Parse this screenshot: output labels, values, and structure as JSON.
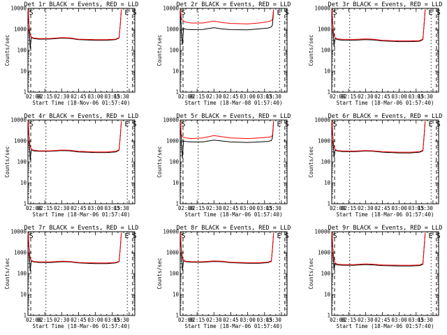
{
  "colors": {
    "events": "#000000",
    "lld": "#ff0000",
    "background": "#ffffff",
    "axes": "#000000"
  },
  "chart_data": [
    {
      "type": "line",
      "title": "Det 1r BLACK = Events, RED = LLD",
      "xlabel": "Start Time (18-Nov-06 01:57:40)",
      "ylabel": "Counts/sec",
      "yscale": "log",
      "ylim": [
        1,
        10000
      ],
      "xticks": [
        "02:00",
        "02:15",
        "02:30",
        "02:45",
        "03:00",
        "03:15",
        "03:30"
      ],
      "yticks": [
        "1",
        "10",
        "100",
        "1000",
        "10000"
      ],
      "markers": [
        "S",
        "E",
        "S"
      ],
      "series": [
        {
          "name": "Events",
          "x": [
            "02:00",
            "02:01",
            "02:02",
            "02:03",
            "02:05",
            "02:10",
            "02:20",
            "02:30",
            "02:37",
            "02:45",
            "03:00",
            "03:10",
            "03:18",
            "03:21",
            "03:22",
            "03:23"
          ],
          "y": [
            8000,
            1500,
            120,
            400,
            360,
            340,
            345,
            380,
            370,
            320,
            300,
            300,
            320,
            380,
            1500,
            8000
          ]
        },
        {
          "name": "LLD",
          "x": [
            "02:00",
            "02:01",
            "02:02",
            "02:03",
            "02:05",
            "02:10",
            "02:20",
            "02:30",
            "02:37",
            "02:45",
            "03:00",
            "03:10",
            "03:18",
            "03:21",
            "03:22",
            "03:23"
          ],
          "y": [
            9000,
            1600,
            600,
            430,
            380,
            360,
            365,
            400,
            390,
            340,
            320,
            320,
            340,
            400,
            1600,
            9000
          ]
        }
      ]
    },
    {
      "type": "line",
      "title": "Det 2r BLACK = Events, RED = LLD",
      "xlabel": "Start Time (18-Mar-08 01:57:40)",
      "ylabel": "Counts/sec",
      "yscale": "log",
      "ylim": [
        1,
        10000
      ],
      "xticks": [
        "02:00",
        "02:15",
        "02:30",
        "02:45",
        "03:00",
        "03:15",
        "03:30"
      ],
      "yticks": [
        "1",
        "10",
        "100",
        "1000",
        "10000"
      ],
      "markers": [
        "S",
        "E",
        "S"
      ],
      "series": [
        {
          "name": "Events",
          "x": [
            "02:00",
            "02:01",
            "02:02",
            "02:03",
            "02:05",
            "02:10",
            "02:20",
            "02:30",
            "02:37",
            "02:45",
            "03:00",
            "03:10",
            "03:18",
            "03:21",
            "03:22",
            "03:23"
          ],
          "y": [
            8000,
            1200,
            180,
            1100,
            1000,
            960,
            980,
            1200,
            1050,
            960,
            950,
            1050,
            1150,
            1300,
            1600,
            8000
          ]
        },
        {
          "name": "LLD",
          "x": [
            "02:00",
            "02:01",
            "02:02",
            "02:03",
            "02:05",
            "02:10",
            "02:20",
            "02:30",
            "02:37",
            "02:45",
            "03:00",
            "03:10",
            "03:18",
            "03:21",
            "03:22",
            "03:23"
          ],
          "y": [
            9000,
            3500,
            2800,
            2500,
            2200,
            2000,
            2000,
            2500,
            2100,
            1900,
            1800,
            2000,
            2300,
            2600,
            3000,
            9000
          ]
        }
      ]
    },
    {
      "type": "line",
      "title": "Det 3r BLACK = Events, RED = LLD",
      "xlabel": "Start Time (18-Mar-06 01:57:40)",
      "ylabel": "Counts/sec",
      "yscale": "log",
      "ylim": [
        1,
        10000
      ],
      "xticks": [
        "02:00",
        "02:15",
        "02:30",
        "02:45",
        "03:00",
        "03:15",
        "03:30"
      ],
      "yticks": [
        "1",
        "10",
        "100",
        "1000",
        "10000"
      ],
      "markers": [
        "S",
        "E",
        "S"
      ],
      "series": [
        {
          "name": "Events",
          "x": [
            "02:00",
            "02:01",
            "02:02",
            "02:03",
            "02:05",
            "02:10",
            "02:20",
            "02:30",
            "02:37",
            "02:45",
            "03:00",
            "03:10",
            "03:18",
            "03:21",
            "03:22",
            "03:23"
          ],
          "y": [
            8000,
            1500,
            150,
            360,
            320,
            300,
            300,
            320,
            310,
            280,
            260,
            260,
            270,
            320,
            1500,
            8000
          ]
        },
        {
          "name": "LLD",
          "x": [
            "02:00",
            "02:01",
            "02:02",
            "02:03",
            "02:05",
            "02:10",
            "02:20",
            "02:30",
            "02:37",
            "02:45",
            "03:00",
            "03:10",
            "03:18",
            "03:21",
            "03:22",
            "03:23"
          ],
          "y": [
            9000,
            1600,
            500,
            400,
            350,
            330,
            330,
            350,
            340,
            300,
            280,
            280,
            290,
            340,
            1600,
            9000
          ]
        }
      ]
    },
    {
      "type": "line",
      "title": "Det 4r BLACK = Events, RED = LLD",
      "xlabel": "Start Time (18-Mar-06 01:57:40)",
      "ylabel": "Counts/sec",
      "yscale": "log",
      "ylim": [
        1,
        10000
      ],
      "xticks": [
        "02:00",
        "02:15",
        "02:30",
        "02:45",
        "03:00",
        "03:15",
        "03:30"
      ],
      "yticks": [
        "1",
        "10",
        "100",
        "1000",
        "10000"
      ],
      "markers": [
        "S",
        "E",
        "S"
      ],
      "series": [
        {
          "name": "Events",
          "x": [
            "02:00",
            "02:01",
            "02:02",
            "02:03",
            "02:05",
            "02:10",
            "02:20",
            "02:30",
            "02:37",
            "02:45",
            "03:00",
            "03:10",
            "03:18",
            "03:21",
            "03:22",
            "03:23"
          ],
          "y": [
            8000,
            1500,
            120,
            380,
            340,
            320,
            320,
            350,
            340,
            300,
            280,
            280,
            300,
            360,
            1500,
            8000
          ]
        },
        {
          "name": "LLD",
          "x": [
            "02:00",
            "02:01",
            "02:02",
            "02:03",
            "02:05",
            "02:10",
            "02:20",
            "02:30",
            "02:37",
            "02:45",
            "03:00",
            "03:10",
            "03:18",
            "03:21",
            "03:22",
            "03:23"
          ],
          "y": [
            9000,
            1600,
            550,
            410,
            360,
            340,
            340,
            370,
            360,
            320,
            300,
            300,
            320,
            380,
            1600,
            9000
          ]
        }
      ]
    },
    {
      "type": "line",
      "title": "Det 5r BLACK = Events, RED = LLD",
      "xlabel": "Start Time (18-Mar-06 01:57:40)",
      "ylabel": "Counts/sec",
      "yscale": "log",
      "ylim": [
        1,
        10000
      ],
      "xticks": [
        "02:00",
        "02:15",
        "02:30",
        "02:45",
        "03:00",
        "03:15",
        "03:30"
      ],
      "yticks": [
        "1",
        "10",
        "100",
        "1000",
        "10000"
      ],
      "markers": [
        "S",
        "E",
        "S"
      ],
      "series": [
        {
          "name": "Events",
          "x": [
            "02:00",
            "02:01",
            "02:02",
            "02:03",
            "02:05",
            "02:10",
            "02:20",
            "02:30",
            "02:37",
            "02:45",
            "03:00",
            "03:10",
            "03:18",
            "03:21",
            "03:22",
            "03:23"
          ],
          "y": [
            8000,
            1200,
            150,
            1000,
            950,
            900,
            900,
            1100,
            1000,
            900,
            850,
            900,
            950,
            1050,
            1400,
            8000
          ]
        },
        {
          "name": "LLD",
          "x": [
            "02:00",
            "02:01",
            "02:02",
            "02:03",
            "02:05",
            "02:10",
            "02:20",
            "02:30",
            "02:37",
            "02:45",
            "03:00",
            "03:10",
            "03:18",
            "03:21",
            "03:22",
            "03:23"
          ],
          "y": [
            9000,
            2000,
            1600,
            1500,
            1400,
            1300,
            1400,
            1800,
            1600,
            1400,
            1300,
            1400,
            1500,
            1600,
            1900,
            9000
          ]
        }
      ]
    },
    {
      "type": "line",
      "title": "Det 6r BLACK = Events, RED = LLD",
      "xlabel": "Start Time (18-Mar-06 01:57:40)",
      "ylabel": "Counts/sec",
      "yscale": "log",
      "ylim": [
        1,
        10000
      ],
      "xticks": [
        "02:00",
        "02:15",
        "02:30",
        "02:45",
        "03:00",
        "03:15",
        "03:30"
      ],
      "yticks": [
        "1",
        "10",
        "100",
        "1000",
        "10000"
      ],
      "markers": [
        "S",
        "E",
        "S"
      ],
      "series": [
        {
          "name": "Events",
          "x": [
            "02:00",
            "02:01",
            "02:02",
            "02:03",
            "02:05",
            "02:10",
            "02:20",
            "02:30",
            "02:37",
            "02:45",
            "03:00",
            "03:10",
            "03:18",
            "03:21",
            "03:22",
            "03:23"
          ],
          "y": [
            8000,
            1500,
            160,
            370,
            330,
            310,
            310,
            330,
            320,
            290,
            270,
            270,
            290,
            340,
            1500,
            8000
          ]
        },
        {
          "name": "LLD",
          "x": [
            "02:00",
            "02:01",
            "02:02",
            "02:03",
            "02:05",
            "02:10",
            "02:20",
            "02:30",
            "02:37",
            "02:45",
            "03:00",
            "03:10",
            "03:18",
            "03:21",
            "03:22",
            "03:23"
          ],
          "y": [
            9000,
            1600,
            520,
            400,
            350,
            330,
            330,
            350,
            340,
            310,
            290,
            290,
            310,
            360,
            1600,
            9000
          ]
        }
      ]
    },
    {
      "type": "line",
      "title": "Det 7r BLACK = Events, RED = LLD",
      "xlabel": "Start Time (18-Mar-06 01:57:40)",
      "ylabel": "Counts/sec",
      "yscale": "log",
      "ylim": [
        1,
        10000
      ],
      "xticks": [
        "02:00",
        "02:15",
        "02:30",
        "02:45",
        "03:00",
        "03:15",
        "03:30"
      ],
      "yticks": [
        "1",
        "10",
        "100",
        "1000",
        "10000"
      ],
      "markers": [
        "S",
        "E",
        "S"
      ],
      "series": [
        {
          "name": "Events",
          "x": [
            "02:00",
            "02:01",
            "02:02",
            "02:03",
            "02:05",
            "02:10",
            "02:20",
            "02:30",
            "02:37",
            "02:45",
            "03:00",
            "03:10",
            "03:18",
            "03:21",
            "03:22",
            "03:23"
          ],
          "y": [
            8000,
            1500,
            130,
            400,
            360,
            340,
            340,
            370,
            360,
            320,
            300,
            300,
            320,
            370,
            1500,
            8000
          ]
        },
        {
          "name": "LLD",
          "x": [
            "02:00",
            "02:01",
            "02:02",
            "02:03",
            "02:05",
            "02:10",
            "02:20",
            "02:30",
            "02:37",
            "02:45",
            "03:00",
            "03:10",
            "03:18",
            "03:21",
            "03:22",
            "03:23"
          ],
          "y": [
            9000,
            1600,
            560,
            430,
            380,
            360,
            360,
            390,
            380,
            340,
            320,
            320,
            340,
            390,
            1600,
            9000
          ]
        }
      ]
    },
    {
      "type": "line",
      "title": "Det 8r BLACK = Events, RED = LLD",
      "xlabel": "Start Time (18-Mar-06 01:57:40)",
      "ylabel": "Counts/sec",
      "yscale": "log",
      "ylim": [
        1,
        10000
      ],
      "xticks": [
        "02:00",
        "02:15",
        "02:30",
        "02:45",
        "03:00",
        "03:15",
        "03:30"
      ],
      "yticks": [
        "1",
        "10",
        "100",
        "1000",
        "10000"
      ],
      "markers": [
        "S",
        "E",
        "S"
      ],
      "series": [
        {
          "name": "Events",
          "x": [
            "02:00",
            "02:01",
            "02:02",
            "02:03",
            "02:05",
            "02:10",
            "02:20",
            "02:30",
            "02:37",
            "02:45",
            "03:00",
            "03:10",
            "03:18",
            "03:21",
            "03:22",
            "03:23"
          ],
          "y": [
            8000,
            1500,
            140,
            410,
            370,
            350,
            350,
            380,
            370,
            330,
            310,
            310,
            330,
            380,
            1500,
            8000
          ]
        },
        {
          "name": "LLD",
          "x": [
            "02:00",
            "02:01",
            "02:02",
            "02:03",
            "02:05",
            "02:10",
            "02:20",
            "02:30",
            "02:37",
            "02:45",
            "03:00",
            "03:10",
            "03:18",
            "03:21",
            "03:22",
            "03:23"
          ],
          "y": [
            9000,
            1600,
            570,
            440,
            390,
            370,
            370,
            400,
            390,
            350,
            330,
            330,
            350,
            400,
            1600,
            9000
          ]
        }
      ]
    },
    {
      "type": "line",
      "title": "Det 9r BLACK = Events, RED = LLD",
      "xlabel": "Start Time (18-Mar-06 01:57:40)",
      "ylabel": "Counts/sec",
      "yscale": "log",
      "ylim": [
        1,
        10000
      ],
      "xticks": [
        "02:00",
        "02:15",
        "02:30",
        "02:45",
        "03:00",
        "03:15",
        "03:30"
      ],
      "yticks": [
        "1",
        "10",
        "100",
        "1000",
        "10000"
      ],
      "markers": [
        "S",
        "E",
        "S"
      ],
      "series": [
        {
          "name": "Events",
          "x": [
            "02:00",
            "02:01",
            "02:02",
            "02:03",
            "02:05",
            "02:10",
            "02:20",
            "02:30",
            "02:37",
            "02:45",
            "03:00",
            "03:10",
            "03:18",
            "03:21",
            "03:22",
            "03:23"
          ],
          "y": [
            8000,
            1500,
            150,
            290,
            260,
            250,
            250,
            270,
            260,
            240,
            230,
            230,
            240,
            280,
            1500,
            8000
          ]
        },
        {
          "name": "LLD",
          "x": [
            "02:00",
            "02:01",
            "02:02",
            "02:03",
            "02:05",
            "02:10",
            "02:20",
            "02:30",
            "02:37",
            "02:45",
            "03:00",
            "03:10",
            "03:18",
            "03:21",
            "03:22",
            "03:23"
          ],
          "y": [
            9000,
            1600,
            460,
            320,
            280,
            270,
            270,
            290,
            280,
            260,
            250,
            250,
            260,
            300,
            1600,
            9000
          ]
        }
      ]
    }
  ]
}
